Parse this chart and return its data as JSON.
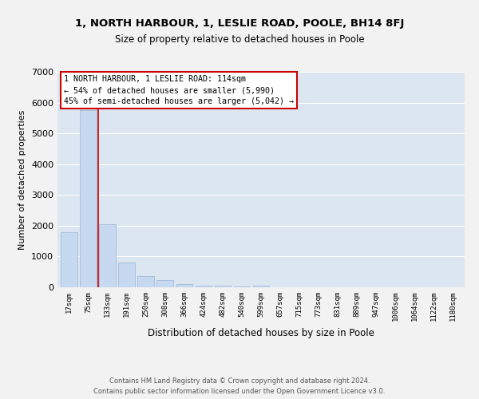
{
  "title": "1, NORTH HARBOUR, 1, LESLIE ROAD, POOLE, BH14 8FJ",
  "subtitle": "Size of property relative to detached houses in Poole",
  "xlabel": "Distribution of detached houses by size in Poole",
  "ylabel": "Number of detached properties",
  "categories": [
    "17sqm",
    "75sqm",
    "133sqm",
    "191sqm",
    "250sqm",
    "308sqm",
    "366sqm",
    "424sqm",
    "482sqm",
    "540sqm",
    "599sqm",
    "657sqm",
    "715sqm",
    "773sqm",
    "831sqm",
    "889sqm",
    "947sqm",
    "1006sqm",
    "1064sqm",
    "1122sqm",
    "1180sqm"
  ],
  "values": [
    1800,
    5750,
    2060,
    800,
    370,
    225,
    110,
    60,
    40,
    20,
    50,
    0,
    0,
    0,
    0,
    0,
    0,
    0,
    0,
    0,
    0
  ],
  "bar_color": "#c6d9f0",
  "bar_edge_color": "#9ab5d5",
  "vline_color": "#cc0000",
  "vline_pos": 1.5,
  "annotation_lines": [
    "1 NORTH HARBOUR, 1 LESLIE ROAD: 114sqm",
    "← 54% of detached houses are smaller (5,990)",
    "45% of semi-detached houses are larger (5,042) →"
  ],
  "annotation_box_color": "#ffffff",
  "annotation_box_edgecolor": "#cc0000",
  "ylim": [
    0,
    7000
  ],
  "yticks": [
    0,
    1000,
    2000,
    3000,
    4000,
    5000,
    6000,
    7000
  ],
  "grid_color": "#ffffff",
  "bg_color": "#dce6f1",
  "fig_bg_color": "#f2f2f2",
  "footnote": "Contains HM Land Registry data © Crown copyright and database right 2024.\nContains public sector information licensed under the Open Government Licence v3.0."
}
